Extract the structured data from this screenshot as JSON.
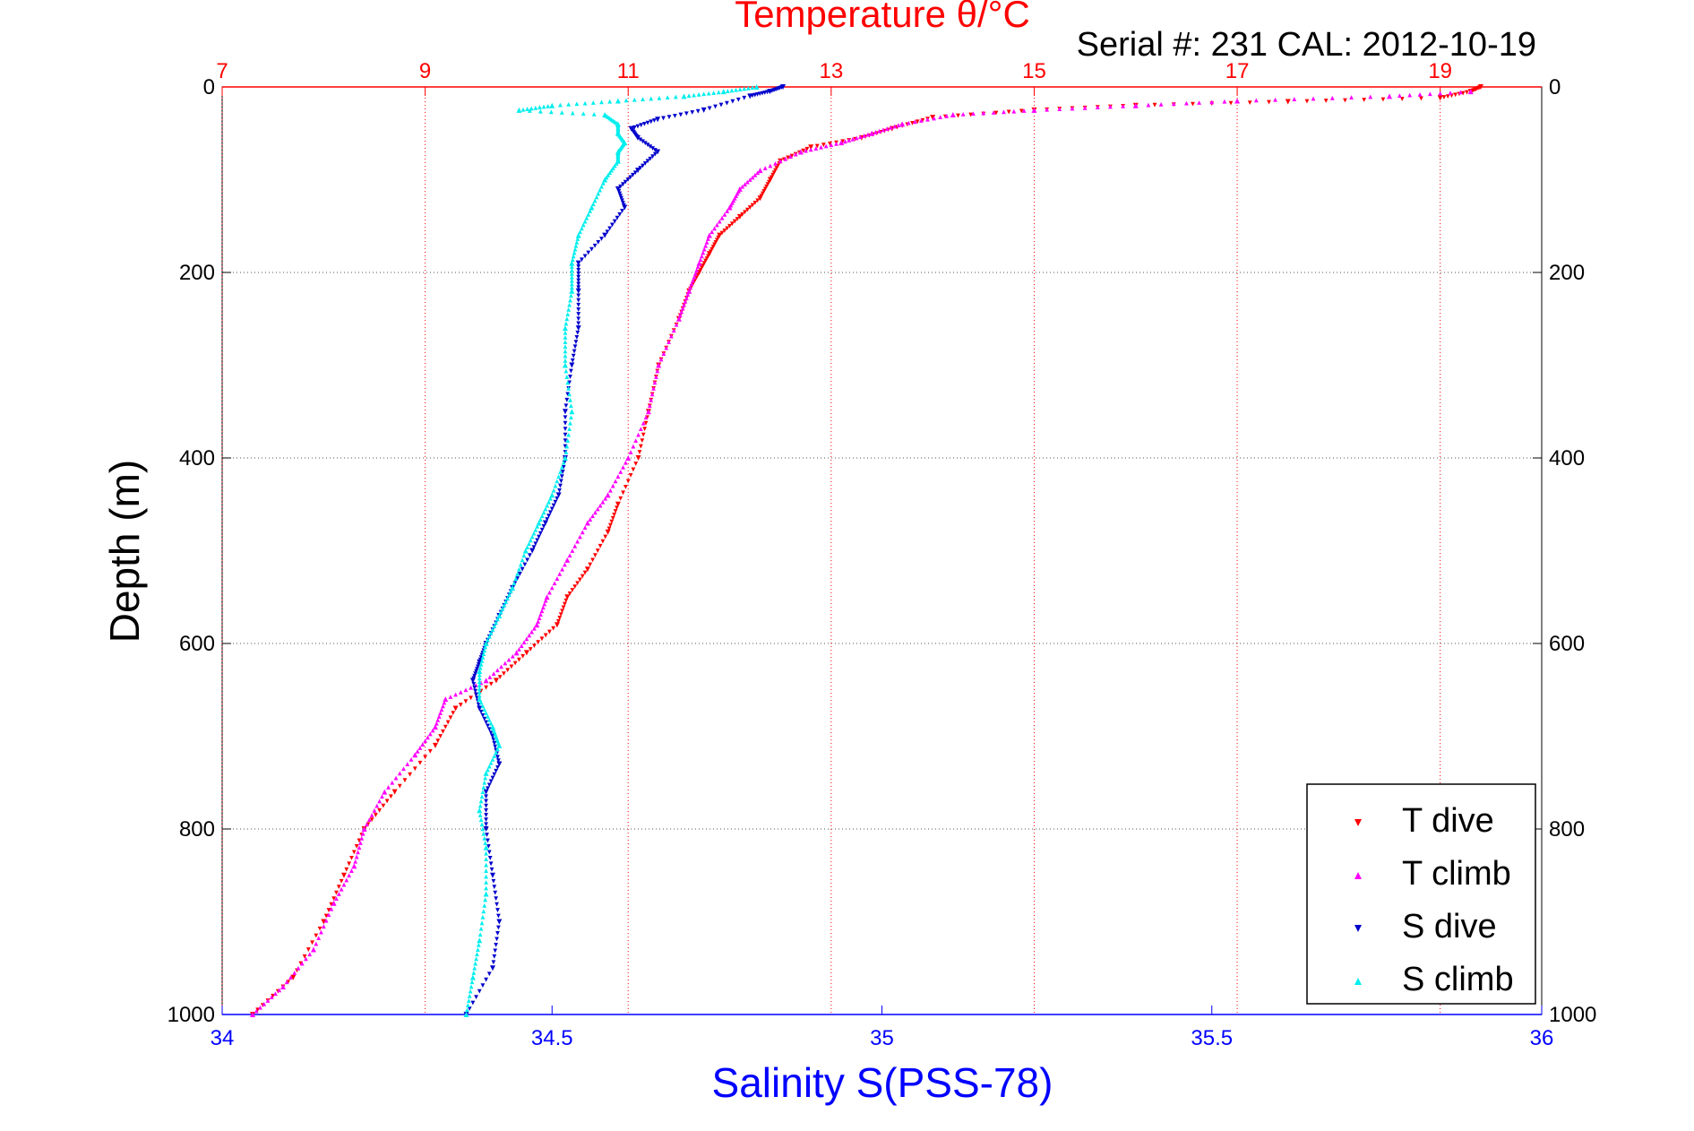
{
  "chart_data": {
    "type": "scatter",
    "title": "Temperature θ/°C",
    "annotation": "Serial #: 231  CAL: 2012-10-19",
    "ylabel": "Depth (m)",
    "xlabel": "Salinity S(PSS-78)",
    "ylim": [
      0,
      1000
    ],
    "y_reversed": true,
    "xlim_salinity": [
      34,
      36
    ],
    "xlim_temperature": [
      7,
      20
    ],
    "y_ticks": [
      "0",
      "200",
      "400",
      "600",
      "800",
      "1000"
    ],
    "x_ticks_salinity": [
      "34",
      "34.5",
      "35",
      "35.5",
      "36"
    ],
    "x_ticks_temperature": [
      "7",
      "9",
      "11",
      "13",
      "15",
      "17",
      "19"
    ],
    "grid": true,
    "legend_position": "bottom-right",
    "colors": {
      "temperature_axis": "#ff0000",
      "salinity_axis": "#0000ff",
      "T_dive": "#ff0000",
      "T_climb": "#ff00ff",
      "S_dive": "#0000cc",
      "S_climb": "#00eeee"
    },
    "series": [
      {
        "name": "T dive",
        "axis": "temperature",
        "marker": "triangle-down",
        "points": [
          [
            19.4,
            0
          ],
          [
            19.3,
            5
          ],
          [
            19.0,
            12
          ],
          [
            17.5,
            16
          ],
          [
            16.0,
            20
          ],
          [
            15.0,
            25
          ],
          [
            14.0,
            33
          ],
          [
            13.6,
            45
          ],
          [
            13.3,
            55
          ],
          [
            12.8,
            65
          ],
          [
            12.5,
            80
          ],
          [
            12.4,
            100
          ],
          [
            12.3,
            120
          ],
          [
            12.1,
            140
          ],
          [
            11.9,
            160
          ],
          [
            11.8,
            180
          ],
          [
            11.7,
            200
          ],
          [
            11.6,
            220
          ],
          [
            11.5,
            250
          ],
          [
            11.3,
            300
          ],
          [
            11.2,
            350
          ],
          [
            11.1,
            400
          ],
          [
            10.9,
            450
          ],
          [
            10.8,
            480
          ],
          [
            10.6,
            520
          ],
          [
            10.4,
            550
          ],
          [
            10.3,
            580
          ],
          [
            10.0,
            610
          ],
          [
            9.7,
            640
          ],
          [
            9.3,
            670
          ],
          [
            9.1,
            710
          ],
          [
            8.7,
            760
          ],
          [
            8.4,
            800
          ],
          [
            8.2,
            850
          ],
          [
            8.0,
            900
          ],
          [
            7.7,
            960
          ],
          [
            7.3,
            1000
          ]
        ]
      },
      {
        "name": "T climb",
        "axis": "temperature",
        "marker": "triangle-up",
        "points": [
          [
            19.3,
            5
          ],
          [
            18.5,
            10
          ],
          [
            17.0,
            15
          ],
          [
            16.0,
            20
          ],
          [
            15.0,
            25
          ],
          [
            14.2,
            30
          ],
          [
            13.7,
            40
          ],
          [
            13.4,
            50
          ],
          [
            13.1,
            60
          ],
          [
            12.7,
            70
          ],
          [
            12.3,
            90
          ],
          [
            12.1,
            110
          ],
          [
            12.0,
            130
          ],
          [
            11.8,
            160
          ],
          [
            11.7,
            190
          ],
          [
            11.6,
            220
          ],
          [
            11.5,
            250
          ],
          [
            11.3,
            300
          ],
          [
            11.2,
            350
          ],
          [
            11.0,
            400
          ],
          [
            10.8,
            440
          ],
          [
            10.6,
            470
          ],
          [
            10.4,
            510
          ],
          [
            10.2,
            550
          ],
          [
            10.1,
            580
          ],
          [
            9.9,
            610
          ],
          [
            9.6,
            640
          ],
          [
            9.2,
            660
          ],
          [
            9.1,
            690
          ],
          [
            8.9,
            720
          ],
          [
            8.6,
            760
          ],
          [
            8.4,
            800
          ],
          [
            8.3,
            840
          ],
          [
            8.1,
            880
          ],
          [
            7.9,
            930
          ],
          [
            7.6,
            970
          ],
          [
            7.3,
            1000
          ]
        ]
      },
      {
        "name": "S dive",
        "axis": "salinity",
        "marker": "triangle-down",
        "points": [
          [
            34.85,
            0
          ],
          [
            34.83,
            5
          ],
          [
            34.8,
            10
          ],
          [
            34.73,
            25
          ],
          [
            34.66,
            35
          ],
          [
            34.62,
            45
          ],
          [
            34.63,
            55
          ],
          [
            34.66,
            70
          ],
          [
            34.63,
            90
          ],
          [
            34.6,
            110
          ],
          [
            34.61,
            130
          ],
          [
            34.58,
            160
          ],
          [
            34.54,
            190
          ],
          [
            34.54,
            220
          ],
          [
            34.54,
            260
          ],
          [
            34.53,
            300
          ],
          [
            34.52,
            350
          ],
          [
            34.52,
            400
          ],
          [
            34.51,
            440
          ],
          [
            34.49,
            470
          ],
          [
            34.47,
            500
          ],
          [
            34.44,
            540
          ],
          [
            34.42,
            570
          ],
          [
            34.4,
            600
          ],
          [
            34.39,
            620
          ],
          [
            34.38,
            640
          ],
          [
            34.39,
            670
          ],
          [
            34.41,
            700
          ],
          [
            34.42,
            730
          ],
          [
            34.4,
            760
          ],
          [
            34.4,
            800
          ],
          [
            34.41,
            850
          ],
          [
            34.42,
            900
          ],
          [
            34.41,
            950
          ],
          [
            34.37,
            1000
          ]
        ]
      },
      {
        "name": "S climb",
        "axis": "salinity",
        "marker": "triangle-up",
        "points": [
          [
            34.81,
            0
          ],
          [
            34.76,
            5
          ],
          [
            34.7,
            10
          ],
          [
            34.6,
            15
          ],
          [
            34.5,
            20
          ],
          [
            34.45,
            25
          ],
          [
            34.58,
            30
          ],
          [
            34.6,
            40
          ],
          [
            34.6,
            50
          ],
          [
            34.61,
            60
          ],
          [
            34.6,
            70
          ],
          [
            34.6,
            80
          ],
          [
            34.58,
            100
          ],
          [
            34.56,
            130
          ],
          [
            34.54,
            160
          ],
          [
            34.53,
            190
          ],
          [
            34.53,
            220
          ],
          [
            34.52,
            260
          ],
          [
            34.52,
            300
          ],
          [
            34.53,
            350
          ],
          [
            34.52,
            400
          ],
          [
            34.5,
            440
          ],
          [
            34.48,
            470
          ],
          [
            34.46,
            500
          ],
          [
            34.44,
            540
          ],
          [
            34.42,
            570
          ],
          [
            34.4,
            600
          ],
          [
            34.39,
            630
          ],
          [
            34.39,
            660
          ],
          [
            34.41,
            690
          ],
          [
            34.42,
            710
          ],
          [
            34.4,
            740
          ],
          [
            34.39,
            780
          ],
          [
            34.4,
            820
          ],
          [
            34.4,
            870
          ],
          [
            34.39,
            920
          ],
          [
            34.38,
            960
          ],
          [
            34.37,
            1000
          ]
        ]
      }
    ]
  }
}
